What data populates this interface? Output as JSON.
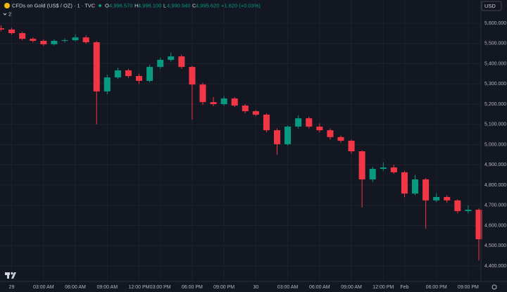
{
  "header": {
    "symbol": "CFDs on Gold (US$ / OZ) · 1 · TVC",
    "open_label": "O",
    "open": "4,996.570",
    "high_label": "H",
    "high": "4,996.100",
    "low_label": "L",
    "low": "4,990.940",
    "close_label": "C",
    "close": "4,995.620",
    "change": "+1.620 (+0.03%)",
    "currency": "USD",
    "indicators": "2"
  },
  "chart_data": {
    "type": "candlestick",
    "up_color": "#089981",
    "down_color": "#f23645",
    "grid": true,
    "x": [
      -1,
      0,
      1,
      2,
      3,
      4,
      5,
      6,
      7,
      8,
      9,
      10,
      11,
      12,
      13,
      14,
      15,
      16,
      17,
      18,
      19,
      20,
      21,
      22,
      23,
      24,
      25,
      26,
      27,
      28,
      29,
      30,
      31,
      32,
      33,
      34,
      35,
      36,
      37,
      38,
      39,
      40,
      41,
      42,
      43,
      44
    ],
    "open": [
      5575,
      5569,
      5551,
      5523,
      5513,
      5496,
      5513,
      5516,
      5530,
      5506,
      5263,
      5332,
      5367,
      5339,
      5315,
      5384,
      5419,
      5436,
      5384,
      5297,
      5210,
      5200,
      5228,
      5193,
      5165,
      5148,
      5071,
      5002,
      5089,
      5130,
      5089,
      5071,
      5037,
      5019,
      4967,
      4828,
      4880,
      4887,
      4863,
      4758,
      4828,
      4724,
      4741,
      4724,
      4671,
      4678
    ],
    "high": [
      5590,
      5578,
      5558,
      5530,
      5520,
      5520,
      5525,
      5545,
      5540,
      5512,
      5345,
      5380,
      5375,
      5350,
      5395,
      5430,
      5455,
      5445,
      5390,
      5305,
      5235,
      5240,
      5235,
      5200,
      5172,
      5155,
      5080,
      5095,
      5145,
      5138,
      5105,
      5080,
      5045,
      5025,
      4972,
      4890,
      4912,
      4900,
      4870,
      4850,
      4835,
      4760,
      4750,
      4730,
      4700,
      4685
    ],
    "low": [
      5560,
      5544,
      5515,
      5505,
      5488,
      5490,
      5505,
      5510,
      5498,
      5100,
      5250,
      5325,
      5330,
      5300,
      5308,
      5375,
      5410,
      5375,
      5123,
      5195,
      5190,
      5192,
      5185,
      5155,
      5140,
      5060,
      4950,
      4995,
      5080,
      5080,
      5060,
      5025,
      5010,
      4955,
      4689,
      4815,
      4870,
      4855,
      4740,
      4750,
      4584,
      4715,
      4712,
      4660,
      4660,
      4428
    ],
    "close": [
      5569,
      5551,
      5523,
      5513,
      5496,
      5513,
      5516,
      5530,
      5506,
      5263,
      5332,
      5367,
      5339,
      5315,
      5384,
      5419,
      5436,
      5384,
      5297,
      5210,
      5200,
      5228,
      5193,
      5165,
      5148,
      5071,
      5002,
      5089,
      5130,
      5089,
      5071,
      5037,
      5019,
      4967,
      4828,
      4880,
      4887,
      4863,
      4758,
      4828,
      4724,
      4741,
      4724,
      4671,
      4678,
      4532
    ],
    "xlim": [
      -1.1,
      44.2
    ],
    "xticks": [
      {
        "value": 0,
        "label": "29"
      },
      {
        "value": 3,
        "label": "03:00 AM"
      },
      {
        "value": 6,
        "label": "06:00 AM"
      },
      {
        "value": 9,
        "label": "09:00 AM"
      },
      {
        "value": 12,
        "label": "12:00 PM"
      },
      {
        "value": 14,
        "label": "03:00 PM"
      },
      {
        "value": 17,
        "label": "06:00 PM"
      },
      {
        "value": 20,
        "label": "09:00 PM"
      },
      {
        "value": 23,
        "label": "30"
      },
      {
        "value": 26,
        "label": "03:00 AM"
      },
      {
        "value": 29,
        "label": "06:00 AM"
      },
      {
        "value": 32,
        "label": "09:00 AM"
      },
      {
        "value": 35,
        "label": "12:00 PM"
      },
      {
        "value": 37,
        "label": "Feb"
      },
      {
        "value": 40,
        "label": "06:00 PM"
      },
      {
        "value": 43,
        "label": "09:00 PM"
      }
    ],
    "ylim": [
      4323.5,
      5714.8
    ],
    "yticks": [
      {
        "value": 4400,
        "label": "4,400.000"
      },
      {
        "value": 4500,
        "label": "4,500.000"
      },
      {
        "value": 4600,
        "label": "4,600.000"
      },
      {
        "value": 4700,
        "label": "4,700.000"
      },
      {
        "value": 4800,
        "label": "4,800.000"
      },
      {
        "value": 4900,
        "label": "4,900.000"
      },
      {
        "value": 5000,
        "label": "5,000.000"
      },
      {
        "value": 5100,
        "label": "5,100.000"
      },
      {
        "value": 5200,
        "label": "5,200.000"
      },
      {
        "value": 5300,
        "label": "5,300.000"
      },
      {
        "value": 5400,
        "label": "5,400.000"
      },
      {
        "value": 5500,
        "label": "5,500.000"
      },
      {
        "value": 5600,
        "label": "5,600.000"
      }
    ]
  }
}
